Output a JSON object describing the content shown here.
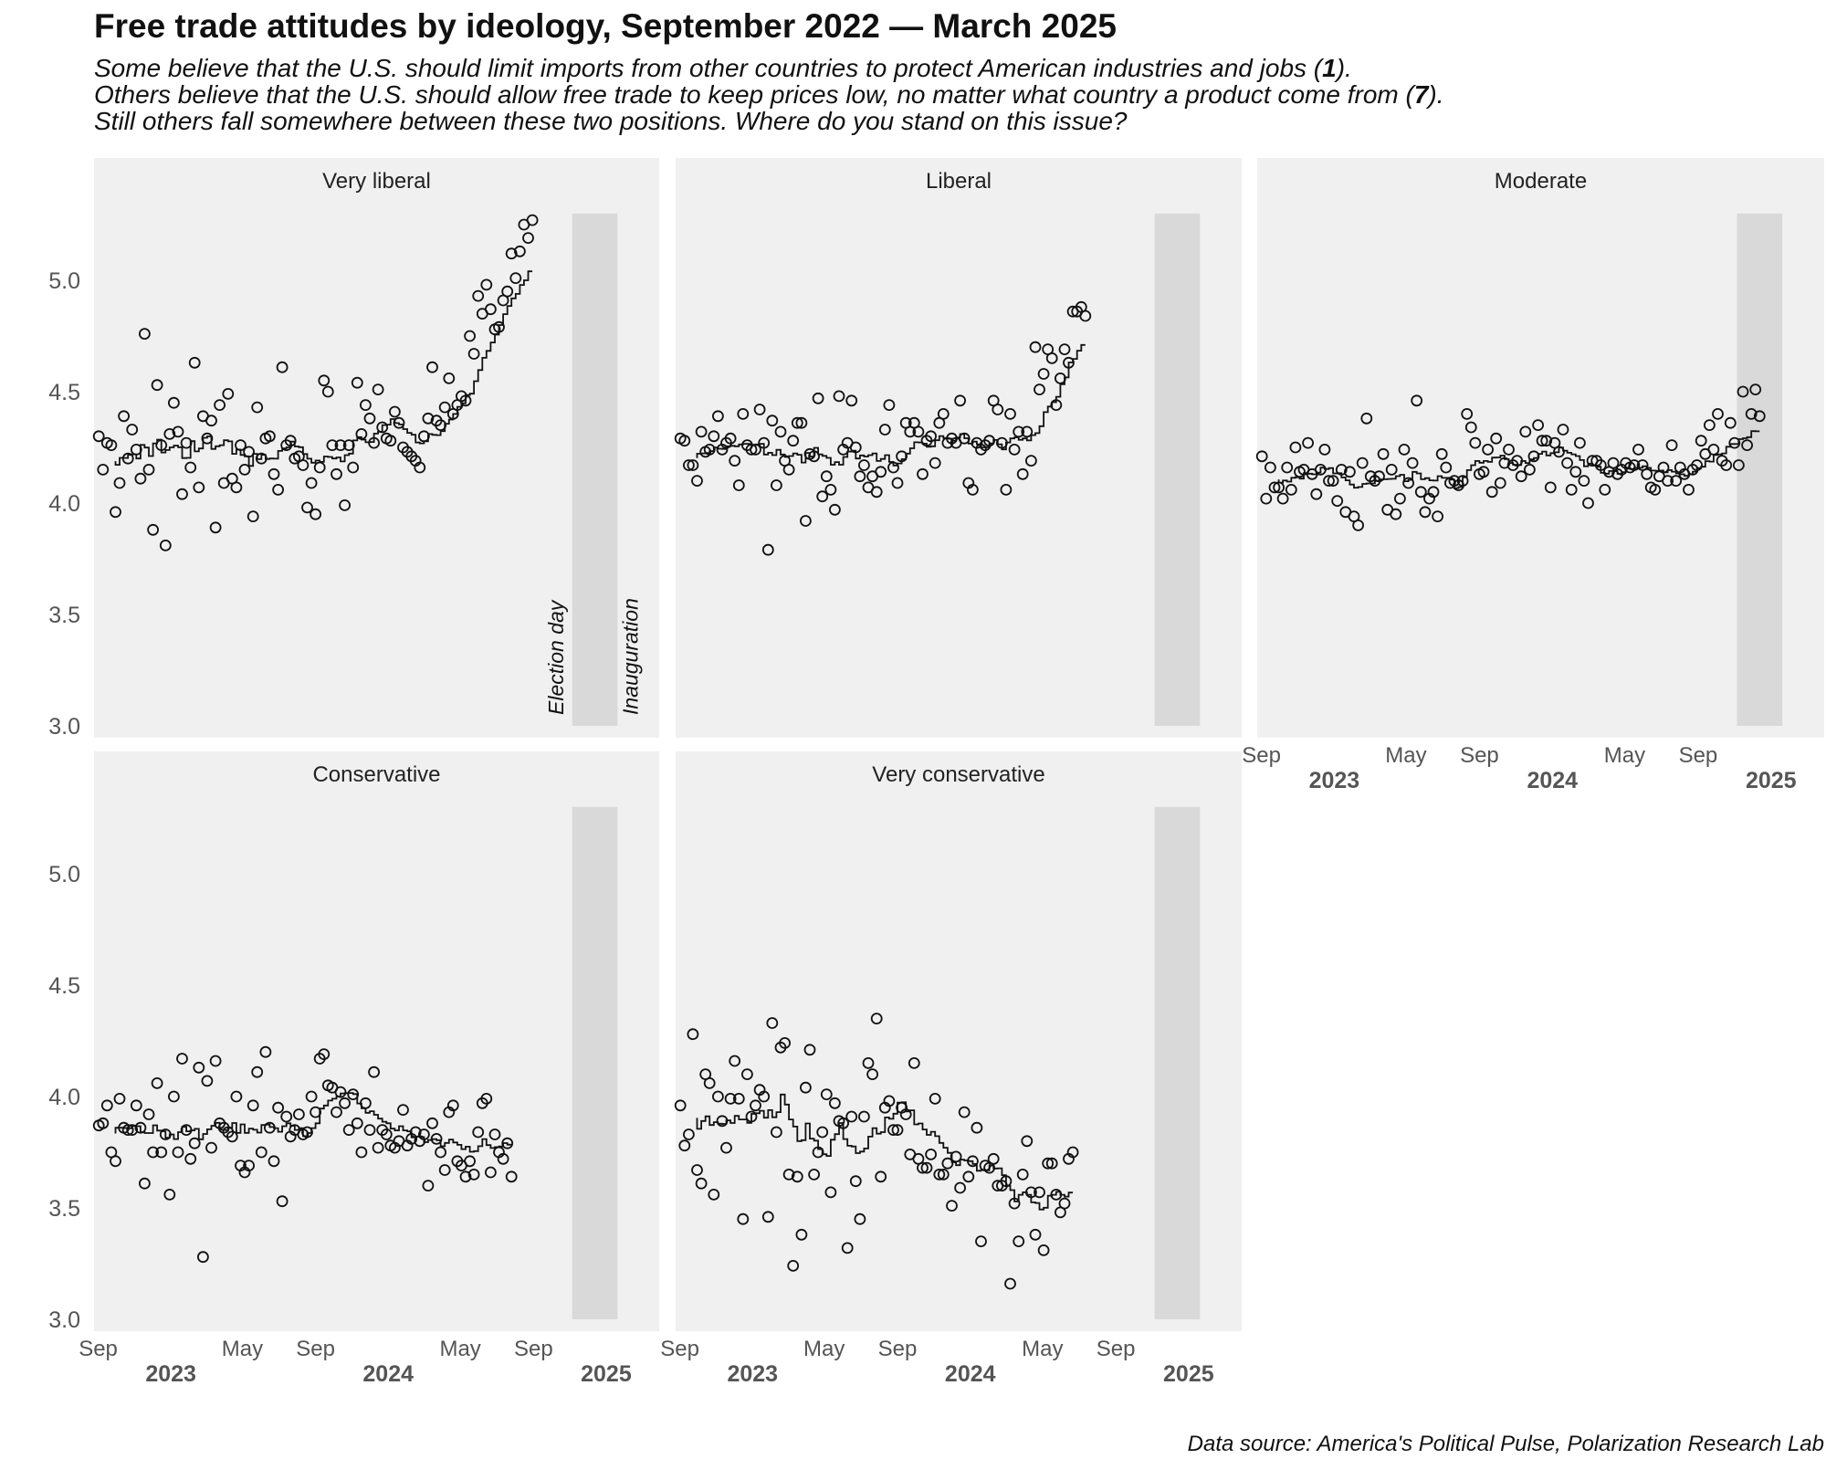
{
  "title": "Free trade attitudes by ideology, September 2022 — March 2025",
  "subtitle": {
    "line1_pre": "Some believe that the U.S. should limit imports from other countries to protect American industries and jobs (",
    "line1_bold": "1",
    "line1_post": ").",
    "line2_pre": "Others believe that the U.S. should allow free trade to keep prices low, no matter what country a product come from (",
    "line2_bold": "7",
    "line2_post": ").",
    "line3": "Still others fall somewhere between these two positions. Where do you stand on this issue?"
  },
  "caption": "Data source: America's Political Pulse, Polarization Research Lab",
  "colors": {
    "panel_bg": "#f0f0f0",
    "shade": "#d9d9d9",
    "ink": "#111111",
    "axis_text": "#555555"
  },
  "chart_data": {
    "type": "scatter",
    "y_ticks": [
      "3.0",
      "3.5",
      "4.0",
      "4.5",
      "5.0"
    ],
    "ylim": [
      3.0,
      5.3
    ],
    "xlim": [
      "2022-08-25",
      "2025-03-31"
    ],
    "x_ticks": [
      {
        "label": "Sep",
        "date": "2022-09-01"
      },
      {
        "label": "May",
        "date": "2023-05-01"
      },
      {
        "label": "Sep",
        "date": "2023-09-01"
      },
      {
        "label": "May",
        "date": "2024-05-01"
      },
      {
        "label": "Sep",
        "date": "2024-09-01"
      }
    ],
    "year_labels": [
      {
        "label": "2023",
        "date": "2023-01-01"
      },
      {
        "label": "2024",
        "date": "2024-01-01"
      },
      {
        "label": "2025",
        "date": "2025-01-01"
      }
    ],
    "shaded_period": {
      "start": "2024-11-05",
      "end": "2025-01-20"
    },
    "annotations": [
      {
        "text": "Election day",
        "date": "2024-11-05"
      },
      {
        "text": "Inauguration",
        "date": "2025-01-20"
      }
    ],
    "point_interval_days": 7,
    "panels": [
      {
        "name": "Very liberal",
        "start": "2022-09-02",
        "values": [
          4.3,
          4.15,
          4.27,
          4.26,
          3.96,
          4.09,
          4.39,
          4.2,
          4.33,
          4.24,
          4.11,
          4.76,
          4.15,
          3.88,
          4.53,
          4.26,
          3.81,
          4.31,
          4.45,
          4.32,
          4.04,
          4.27,
          4.16,
          4.63,
          4.07,
          4.39,
          4.29,
          4.37,
          3.89,
          4.44,
          4.09,
          4.49,
          4.11,
          4.07,
          4.26,
          4.15,
          4.23,
          3.94,
          4.43,
          4.2,
          4.29,
          4.3,
          4.13,
          4.06,
          4.61,
          4.26,
          4.28,
          4.2,
          4.21,
          4.17,
          3.98,
          4.09,
          3.95,
          4.16,
          4.55,
          4.5,
          4.26,
          4.13,
          4.26,
          3.99,
          4.26,
          4.16,
          4.54,
          4.31,
          4.44,
          4.38,
          4.27,
          4.51,
          4.34,
          4.29,
          4.28,
          4.41,
          4.36,
          4.25,
          4.23,
          4.21,
          4.19,
          4.16,
          4.3,
          4.38,
          4.61,
          4.37,
          4.35,
          4.43,
          4.56,
          4.4,
          4.44,
          4.48,
          4.46,
          4.75,
          4.67,
          4.93,
          4.85,
          4.98,
          4.87,
          4.78,
          4.79,
          4.91,
          4.95,
          5.12,
          5.01,
          5.13,
          5.25,
          5.19,
          5.27
        ]
      },
      {
        "name": "Liberal",
        "start": "2022-09-02",
        "values": [
          4.29,
          4.28,
          4.17,
          4.17,
          4.1,
          4.32,
          4.23,
          4.24,
          4.3,
          4.39,
          4.24,
          4.27,
          4.29,
          4.19,
          4.08,
          4.4,
          4.26,
          4.24,
          4.24,
          4.42,
          4.27,
          3.79,
          4.37,
          4.08,
          4.32,
          4.19,
          4.15,
          4.28,
          4.36,
          4.36,
          3.92,
          4.22,
          4.21,
          4.47,
          4.03,
          4.12,
          4.06,
          3.97,
          4.48,
          4.24,
          4.27,
          4.46,
          4.25,
          4.12,
          4.17,
          4.07,
          4.12,
          4.05,
          4.14,
          4.33,
          4.44,
          4.16,
          4.09,
          4.21,
          4.36,
          4.32,
          4.36,
          4.32,
          4.13,
          4.28,
          4.3,
          4.18,
          4.36,
          4.4,
          4.27,
          4.29,
          4.27,
          4.46,
          4.29,
          4.09,
          4.06,
          4.27,
          4.24,
          4.26,
          4.28,
          4.46,
          4.42,
          4.27,
          4.06,
          4.4,
          4.24,
          4.32,
          4.13,
          4.32,
          4.19,
          4.7,
          4.51,
          4.58,
          4.69,
          4.65,
          4.44,
          4.56,
          4.69,
          4.63,
          4.86,
          4.86,
          4.88,
          4.84
        ]
      },
      {
        "name": "Moderate",
        "start": "2022-09-02",
        "values": [
          4.21,
          4.02,
          4.16,
          4.07,
          4.07,
          4.02,
          4.16,
          4.06,
          4.25,
          4.14,
          4.15,
          4.27,
          4.13,
          4.04,
          4.15,
          4.24,
          4.1,
          4.1,
          4.01,
          4.15,
          3.96,
          4.14,
          3.94,
          3.9,
          4.18,
          4.38,
          4.12,
          4.1,
          4.12,
          4.22,
          3.97,
          4.15,
          3.95,
          4.02,
          4.24,
          4.09,
          4.18,
          4.46,
          4.05,
          3.96,
          4.02,
          4.05,
          3.94,
          4.22,
          4.16,
          4.09,
          4.1,
          4.08,
          4.1,
          4.4,
          4.34,
          4.27,
          4.13,
          4.14,
          4.24,
          4.05,
          4.29,
          4.09,
          4.18,
          4.24,
          4.17,
          4.19,
          4.12,
          4.32,
          4.15,
          4.21,
          4.35,
          4.28,
          4.28,
          4.07,
          4.27,
          4.23,
          4.33,
          4.18,
          4.06,
          4.14,
          4.27,
          4.1,
          4.0,
          4.19,
          4.19,
          4.17,
          4.06,
          4.14,
          4.18,
          4.13,
          4.15,
          4.18,
          4.16,
          4.17,
          4.24,
          4.17,
          4.13,
          4.07,
          4.06,
          4.12,
          4.16,
          4.1,
          4.26,
          4.1,
          4.16,
          4.13,
          4.06,
          4.15,
          4.17,
          4.28,
          4.22,
          4.35,
          4.24,
          4.4,
          4.19,
          4.17,
          4.36,
          4.27,
          4.17,
          4.5,
          4.26,
          4.4,
          4.51,
          4.39
        ]
      },
      {
        "name": "Conservative",
        "start": "2022-09-02",
        "values": [
          3.87,
          3.88,
          3.96,
          3.75,
          3.71,
          3.99,
          3.86,
          3.85,
          3.85,
          3.96,
          3.86,
          3.61,
          3.92,
          3.75,
          4.06,
          3.75,
          3.83,
          3.56,
          4.0,
          3.75,
          4.17,
          3.85,
          3.72,
          3.79,
          4.13,
          3.28,
          4.07,
          3.77,
          4.16,
          3.88,
          3.86,
          3.84,
          3.82,
          4.0,
          3.69,
          3.66,
          3.69,
          3.96,
          4.11,
          3.75,
          4.2,
          3.86,
          3.71,
          3.95,
          3.53,
          3.91,
          3.82,
          3.85,
          3.92,
          3.83,
          3.84,
          4.0,
          3.93,
          4.17,
          4.19,
          4.05,
          4.04,
          3.93,
          4.02,
          3.97,
          3.85,
          4.01,
          3.88,
          3.75,
          3.97,
          3.85,
          4.11,
          3.77,
          3.85,
          3.83,
          3.78,
          3.77,
          3.8,
          3.94,
          3.78,
          3.81,
          3.84,
          3.8,
          3.83,
          3.6,
          3.88,
          3.81,
          3.75,
          3.67,
          3.93,
          3.96,
          3.71,
          3.69,
          3.64,
          3.71,
          3.65,
          3.84,
          3.97,
          3.99,
          3.66,
          3.83,
          3.75,
          3.72,
          3.79,
          3.64
        ]
      },
      {
        "name": "Very conservative",
        "start": "2022-09-02",
        "values": [
          3.96,
          3.78,
          3.83,
          4.28,
          3.67,
          3.61,
          4.1,
          4.06,
          3.56,
          4.0,
          3.89,
          3.77,
          3.99,
          4.16,
          3.99,
          3.45,
          4.1,
          3.91,
          3.96,
          4.03,
          4.0,
          3.46,
          4.33,
          3.84,
          4.22,
          4.24,
          3.65,
          3.24,
          3.64,
          3.38,
          4.04,
          4.21,
          3.65,
          3.75,
          3.84,
          4.01,
          3.57,
          3.97,
          3.89,
          3.88,
          3.32,
          3.91,
          3.62,
          3.45,
          3.91,
          4.15,
          4.1,
          4.35,
          3.64,
          3.95,
          3.98,
          3.85,
          3.85,
          3.95,
          3.92,
          3.74,
          4.15,
          3.72,
          3.68,
          3.68,
          3.74,
          3.99,
          3.65,
          3.65,
          3.7,
          3.51,
          3.73,
          3.59,
          3.93,
          3.64,
          3.71,
          3.86,
          3.35,
          3.69,
          3.68,
          3.72,
          3.6,
          3.6,
          3.62,
          3.16,
          3.52,
          3.35,
          3.65,
          3.8,
          3.57,
          3.38,
          3.57,
          3.31,
          3.7,
          3.7,
          3.56,
          3.48,
          3.52,
          3.72,
          3.75
        ]
      }
    ]
  }
}
